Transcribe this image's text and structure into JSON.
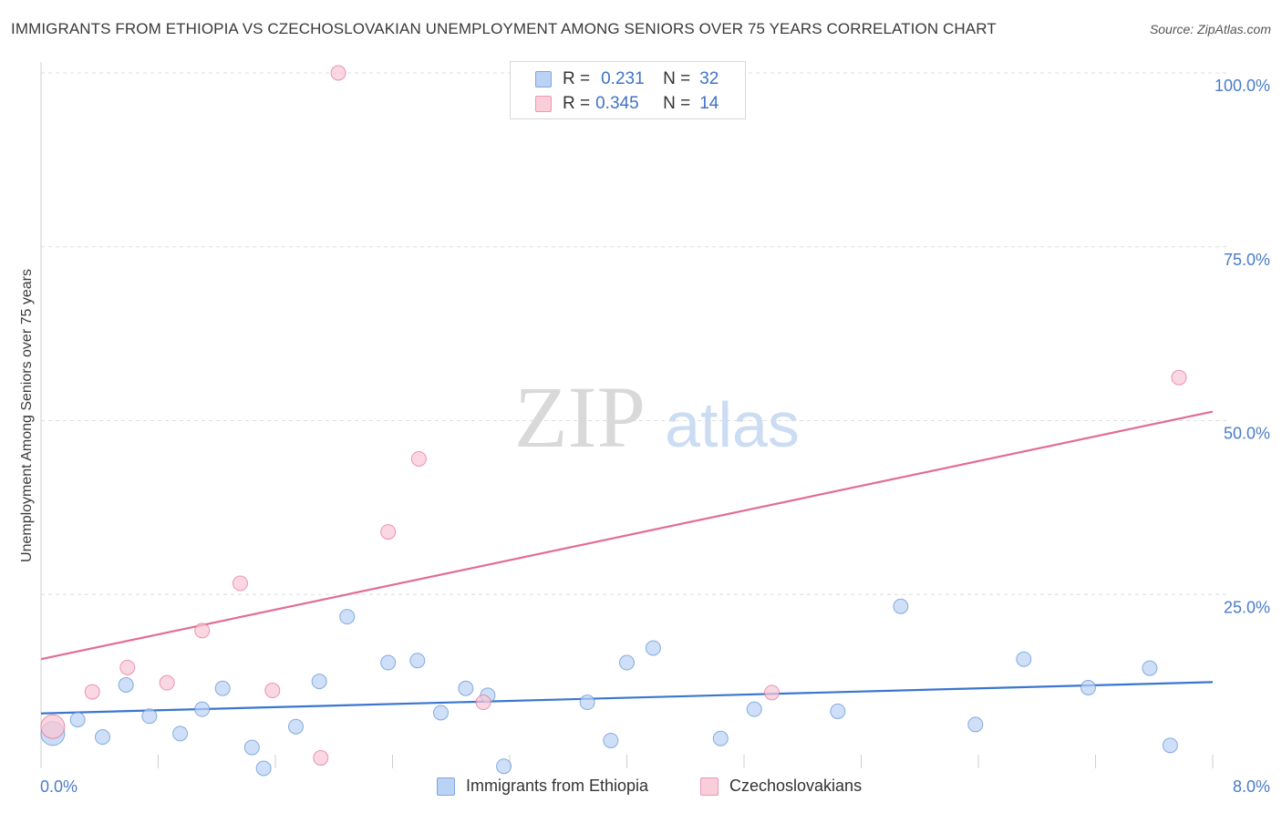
{
  "title": "IMMIGRANTS FROM ETHIOPIA VS CZECHOSLOVAKIAN UNEMPLOYMENT AMONG SENIORS OVER 75 YEARS CORRELATION CHART",
  "source": "Source: ZipAtlas.com",
  "watermark": {
    "zip": "ZIP",
    "atlas": "atlas"
  },
  "legend": {
    "r_label": "R =",
    "n_label": "N =",
    "rows": [
      {
        "r": "0.231",
        "n": "32",
        "color": "#a9c6ef",
        "border": "#7fa7e0"
      },
      {
        "r": "0.345",
        "n": "14",
        "color": "#f5bccd",
        "border": "#ec9ab3"
      }
    ]
  },
  "bottom_legend": [
    {
      "label": "Immigrants from Ethiopia",
      "color": "#bad3f5",
      "border": "#7fa7e0"
    },
    {
      "label": "Czechoslovakians",
      "color": "#f9cdda",
      "border": "#ec9ab3"
    }
  ],
  "chart_data": {
    "type": "scatter",
    "title": "IMMIGRANTS FROM ETHIOPIA VS CZECHOSLOVAKIAN UNEMPLOYMENT AMONG SENIORS OVER 75 YEARS CORRELATION CHART",
    "xlabel": "",
    "ylabel": "Unemployment Among Seniors over 75 years",
    "xlim": [
      0,
      8
    ],
    "ylim": [
      0,
      100
    ],
    "x_tick_labels": [
      "0.0%",
      "8.0%"
    ],
    "y_ticks": [
      25,
      50,
      75,
      100
    ],
    "y_tick_labels": [
      "25.0%",
      "50.0%",
      "75.0%",
      "100.0%"
    ],
    "grid": true,
    "series": [
      {
        "name": "Immigrants from Ethiopia",
        "color": "#5b8fd6",
        "fill": "#b9d1f3",
        "trend": {
          "x": [
            0,
            8
          ],
          "y": [
            7.9,
            12.4
          ]
        },
        "points": [
          {
            "x": 0.08,
            "y": 5.0,
            "big": true
          },
          {
            "x": 0.25,
            "y": 7.0
          },
          {
            "x": 0.42,
            "y": 4.5
          },
          {
            "x": 0.58,
            "y": 12.0
          },
          {
            "x": 0.74,
            "y": 7.5
          },
          {
            "x": 0.95,
            "y": 5.0
          },
          {
            "x": 1.1,
            "y": 8.5
          },
          {
            "x": 1.24,
            "y": 11.5
          },
          {
            "x": 1.44,
            "y": 3.0
          },
          {
            "x": 1.52,
            "y": 0.0
          },
          {
            "x": 1.74,
            "y": 6.0
          },
          {
            "x": 1.9,
            "y": 12.5
          },
          {
            "x": 2.09,
            "y": 21.8
          },
          {
            "x": 2.37,
            "y": 15.2
          },
          {
            "x": 2.57,
            "y": 15.5
          },
          {
            "x": 2.73,
            "y": 8.0
          },
          {
            "x": 2.9,
            "y": 11.5
          },
          {
            "x": 3.05,
            "y": 10.5
          },
          {
            "x": 3.16,
            "y": 0.3
          },
          {
            "x": 3.73,
            "y": 9.5
          },
          {
            "x": 3.89,
            "y": 4.0
          },
          {
            "x": 4.0,
            "y": 15.2
          },
          {
            "x": 4.18,
            "y": 17.3
          },
          {
            "x": 4.64,
            "y": 4.3
          },
          {
            "x": 4.87,
            "y": 8.5
          },
          {
            "x": 5.44,
            "y": 8.2
          },
          {
            "x": 5.87,
            "y": 23.3
          },
          {
            "x": 6.38,
            "y": 6.3
          },
          {
            "x": 6.71,
            "y": 15.7
          },
          {
            "x": 7.15,
            "y": 11.6
          },
          {
            "x": 7.57,
            "y": 14.4
          },
          {
            "x": 7.71,
            "y": 3.3
          }
        ]
      },
      {
        "name": "Czechoslovakians",
        "color": "#e0708f",
        "fill": "#f8c6d5",
        "trend": {
          "x": [
            0,
            8
          ],
          "y": [
            15.7,
            51.3
          ]
        },
        "points": [
          {
            "x": 0.08,
            "y": 6.0,
            "big": true
          },
          {
            "x": 0.35,
            "y": 11.0
          },
          {
            "x": 0.59,
            "y": 14.5
          },
          {
            "x": 0.86,
            "y": 12.3
          },
          {
            "x": 1.1,
            "y": 19.8
          },
          {
            "x": 1.36,
            "y": 26.6
          },
          {
            "x": 1.58,
            "y": 11.2
          },
          {
            "x": 1.91,
            "y": 1.5
          },
          {
            "x": 2.03,
            "y": 100.0
          },
          {
            "x": 2.37,
            "y": 34.0
          },
          {
            "x": 2.58,
            "y": 44.5
          },
          {
            "x": 3.02,
            "y": 9.5
          },
          {
            "x": 4.99,
            "y": 10.9
          },
          {
            "x": 7.77,
            "y": 56.2
          }
        ]
      }
    ]
  }
}
